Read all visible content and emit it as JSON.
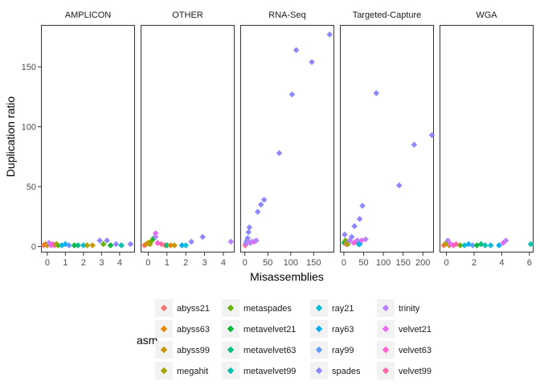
{
  "chart_data": {
    "type": "scatter",
    "xlabel": "Misassemblies",
    "ylabel": "Duplication ratio",
    "ylim": [
      -5,
      185
    ],
    "y_ticks": [
      0,
      50,
      100,
      150
    ],
    "grid": false,
    "legend_placement": "bottom",
    "legend": {
      "title": "asm",
      "items": [
        {
          "name": "abyss21",
          "color": "#F8766D"
        },
        {
          "name": "abyss63",
          "color": "#E58700"
        },
        {
          "name": "abyss99",
          "color": "#C99800"
        },
        {
          "name": "megahit",
          "color": "#A3A500"
        },
        {
          "name": "metaspades",
          "color": "#6BB100"
        },
        {
          "name": "metavelvet21",
          "color": "#00BA38"
        },
        {
          "name": "metavelvet63",
          "color": "#00BF7D"
        },
        {
          "name": "metavelvet99",
          "color": "#00C0AF"
        },
        {
          "name": "ray21",
          "color": "#00BCD8"
        },
        {
          "name": "ray63",
          "color": "#00B0F6"
        },
        {
          "name": "ray99",
          "color": "#619CFF"
        },
        {
          "name": "spades",
          "color": "#8D88FF"
        },
        {
          "name": "trinity",
          "color": "#B983FF"
        },
        {
          "name": "velvet21",
          "color": "#E76BF3"
        },
        {
          "name": "velvet63",
          "color": "#FD61D1"
        },
        {
          "name": "velvet99",
          "color": "#FF67A4"
        }
      ]
    },
    "facets": [
      {
        "label": "AMPLICON",
        "xlim": [
          -0.35,
          4.85
        ],
        "x_ticks": [
          0,
          1,
          2,
          3,
          4
        ],
        "points": [
          {
            "x": -0.2,
            "y": 1,
            "s": "abyss21"
          },
          {
            "x": -0.1,
            "y": 2,
            "s": "abyss63"
          },
          {
            "x": 0.0,
            "y": 1,
            "s": "abyss99"
          },
          {
            "x": 0.1,
            "y": 3,
            "s": "trinity"
          },
          {
            "x": 0.2,
            "y": 1,
            "s": "velvet21"
          },
          {
            "x": 0.3,
            "y": 2,
            "s": "velvet63"
          },
          {
            "x": 0.4,
            "y": 1,
            "s": "velvet99"
          },
          {
            "x": 0.5,
            "y": 2,
            "s": "megahit"
          },
          {
            "x": 0.6,
            "y": 1,
            "s": "metaspades"
          },
          {
            "x": 0.8,
            "y": 1,
            "s": "ray21"
          },
          {
            "x": 1.0,
            "y": 2,
            "s": "ray63"
          },
          {
            "x": 1.2,
            "y": 1,
            "s": "ray99"
          },
          {
            "x": 1.5,
            "y": 1,
            "s": "metavelvet21"
          },
          {
            "x": 1.7,
            "y": 1,
            "s": "metavelvet63"
          },
          {
            "x": 2.0,
            "y": 1,
            "s": "ray21"
          },
          {
            "x": 2.2,
            "y": 1,
            "s": "megahit"
          },
          {
            "x": 2.5,
            "y": 1,
            "s": "abyss99"
          },
          {
            "x": 2.9,
            "y": 5,
            "s": "spades"
          },
          {
            "x": 3.1,
            "y": 2,
            "s": "metaspades"
          },
          {
            "x": 3.3,
            "y": 5,
            "s": "spades"
          },
          {
            "x": 3.5,
            "y": 1,
            "s": "metavelvet21"
          },
          {
            "x": 3.8,
            "y": 2,
            "s": "spades"
          },
          {
            "x": 4.1,
            "y": 1,
            "s": "metavelvet99"
          },
          {
            "x": 4.6,
            "y": 2,
            "s": "spades"
          }
        ]
      },
      {
        "label": "OTHER",
        "xlim": [
          -0.4,
          4.6
        ],
        "x_ticks": [
          0,
          1,
          2,
          3,
          4
        ],
        "points": [
          {
            "x": -0.2,
            "y": 1,
            "s": "abyss21"
          },
          {
            "x": -0.1,
            "y": 2,
            "s": "abyss63"
          },
          {
            "x": 0.0,
            "y": 3,
            "s": "abyss99"
          },
          {
            "x": 0.1,
            "y": 2,
            "s": "megahit"
          },
          {
            "x": 0.2,
            "y": 5,
            "s": "metaspades"
          },
          {
            "x": 0.3,
            "y": 7,
            "s": "metavelvet21"
          },
          {
            "x": 0.4,
            "y": 11,
            "s": "velvet21"
          },
          {
            "x": 0.4,
            "y": 8,
            "s": "trinity"
          },
          {
            "x": 0.5,
            "y": 3,
            "s": "velvet63"
          },
          {
            "x": 0.7,
            "y": 2,
            "s": "velvet99"
          },
          {
            "x": 0.9,
            "y": 1,
            "s": "abyss21"
          },
          {
            "x": 1.0,
            "y": 1,
            "s": "metavelvet63"
          },
          {
            "x": 1.2,
            "y": 1,
            "s": "abyss63"
          },
          {
            "x": 1.4,
            "y": 1,
            "s": "abyss99"
          },
          {
            "x": 1.8,
            "y": 1,
            "s": "ray63"
          },
          {
            "x": 2.0,
            "y": 1,
            "s": "ray21"
          },
          {
            "x": 2.3,
            "y": 4,
            "s": "spades"
          },
          {
            "x": 2.9,
            "y": 8,
            "s": "spades"
          },
          {
            "x": 4.4,
            "y": 4,
            "s": "trinity"
          }
        ]
      },
      {
        "label": "RNA-Seq",
        "xlim": [
          -10,
          195
        ],
        "x_ticks": [
          0,
          50,
          100,
          150
        ],
        "points": [
          {
            "x": 1,
            "y": 1,
            "s": "abyss21"
          },
          {
            "x": 2,
            "y": 2,
            "s": "velvet21"
          },
          {
            "x": 3,
            "y": 3,
            "s": "trinity"
          },
          {
            "x": 4,
            "y": 4,
            "s": "spades"
          },
          {
            "x": 5,
            "y": 5,
            "s": "spades"
          },
          {
            "x": 6,
            "y": 7,
            "s": "spades"
          },
          {
            "x": 7,
            "y": 4,
            "s": "trinity"
          },
          {
            "x": 8,
            "y": 12,
            "s": "spades"
          },
          {
            "x": 10,
            "y": 16,
            "s": "spades"
          },
          {
            "x": 12,
            "y": 3,
            "s": "trinity"
          },
          {
            "x": 15,
            "y": 4,
            "s": "trinity"
          },
          {
            "x": 20,
            "y": 4,
            "s": "velvet21"
          },
          {
            "x": 25,
            "y": 5,
            "s": "trinity"
          },
          {
            "x": 28,
            "y": 29,
            "s": "spades"
          },
          {
            "x": 35,
            "y": 35,
            "s": "spades"
          },
          {
            "x": 42,
            "y": 39,
            "s": "spades"
          },
          {
            "x": 75,
            "y": 78,
            "s": "spades"
          },
          {
            "x": 103,
            "y": 127,
            "s": "spades"
          },
          {
            "x": 112,
            "y": 164,
            "s": "spades"
          },
          {
            "x": 146,
            "y": 154,
            "s": "spades"
          },
          {
            "x": 185,
            "y": 177,
            "s": "spades"
          }
        ]
      },
      {
        "label": "Targeted-Capture",
        "xlim": [
          -10,
          228
        ],
        "x_ticks": [
          0,
          50,
          100,
          150,
          200
        ],
        "points": [
          {
            "x": 1,
            "y": 3,
            "s": "metavelvet21"
          },
          {
            "x": 2,
            "y": 10,
            "s": "spades"
          },
          {
            "x": 4,
            "y": 5,
            "s": "metaspades"
          },
          {
            "x": 6,
            "y": 2,
            "s": "abyss21"
          },
          {
            "x": 10,
            "y": 2,
            "s": "megahit"
          },
          {
            "x": 15,
            "y": 5,
            "s": "trinity"
          },
          {
            "x": 20,
            "y": 8,
            "s": "spades"
          },
          {
            "x": 25,
            "y": 3,
            "s": "velvet21"
          },
          {
            "x": 30,
            "y": 4,
            "s": "velvet63"
          },
          {
            "x": 35,
            "y": 5,
            "s": "trinity"
          },
          {
            "x": 38,
            "y": 2,
            "s": "metavelvet63"
          },
          {
            "x": 40,
            "y": 2,
            "s": "ray63"
          },
          {
            "x": 45,
            "y": 5,
            "s": "velvet21"
          },
          {
            "x": 55,
            "y": 6,
            "s": "trinity"
          },
          {
            "x": 27,
            "y": 17,
            "s": "spades"
          },
          {
            "x": 40,
            "y": 23,
            "s": "spades"
          },
          {
            "x": 47,
            "y": 34,
            "s": "spades"
          },
          {
            "x": 82,
            "y": 128,
            "s": "spades"
          },
          {
            "x": 140,
            "y": 51,
            "s": "spades"
          },
          {
            "x": 178,
            "y": 85,
            "s": "spades"
          },
          {
            "x": 223,
            "y": 93,
            "s": "spades"
          }
        ]
      },
      {
        "label": "WGA",
        "xlim": [
          -0.5,
          6.3
        ],
        "x_ticks": [
          0,
          2,
          4,
          6
        ],
        "points": [
          {
            "x": -0.2,
            "y": 1,
            "s": "abyss21"
          },
          {
            "x": -0.1,
            "y": 2,
            "s": "abyss63"
          },
          {
            "x": 0.0,
            "y": 3,
            "s": "megahit"
          },
          {
            "x": 0.1,
            "y": 5,
            "s": "trinity"
          },
          {
            "x": 0.2,
            "y": 1,
            "s": "abyss99"
          },
          {
            "x": 0.3,
            "y": 2,
            "s": "velvet21"
          },
          {
            "x": 0.5,
            "y": 1,
            "s": "velvet63"
          },
          {
            "x": 0.7,
            "y": 2,
            "s": "velvet99"
          },
          {
            "x": 1.0,
            "y": 1,
            "s": "metaspades"
          },
          {
            "x": 1.3,
            "y": 1,
            "s": "ray21"
          },
          {
            "x": 1.6,
            "y": 2,
            "s": "ray63"
          },
          {
            "x": 1.9,
            "y": 1,
            "s": "ray99"
          },
          {
            "x": 2.2,
            "y": 1,
            "s": "metavelvet21"
          },
          {
            "x": 2.5,
            "y": 2,
            "s": "metavelvet63"
          },
          {
            "x": 2.8,
            "y": 1,
            "s": "metavelvet99"
          },
          {
            "x": 3.2,
            "y": 1,
            "s": "ray21"
          },
          {
            "x": 3.8,
            "y": 1,
            "s": "ray63"
          },
          {
            "x": 4.1,
            "y": 3,
            "s": "velvet21"
          },
          {
            "x": 4.3,
            "y": 5,
            "s": "trinity"
          },
          {
            "x": 6.1,
            "y": 2,
            "s": "metavelvet99"
          }
        ]
      }
    ]
  }
}
